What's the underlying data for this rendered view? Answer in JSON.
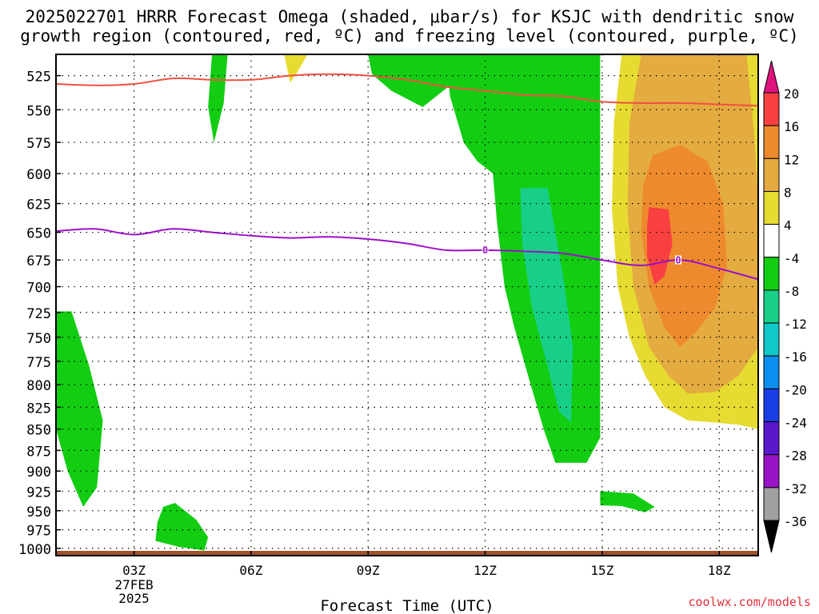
{
  "title_line1": "2025022701 HRRR Forecast Omega (shaded, μbar/s) for KSJC with dendritic snow",
  "title_line2": "growth region (contoured, red, ºC) and freezing level (contoured, purple, ºC)",
  "credit": "coolwx.com/models",
  "chart_data": {
    "type": "heatmap",
    "title": "2025022701 HRRR Forecast Omega (shaded, μbar/s) for KSJC with dendritic snow growth region (contoured, red, ºC) and freezing level (contoured, purple, ºC)",
    "xlabel": "Forecast Time (UTC)",
    "ylabel": "",
    "x_unit": "hours",
    "xlim": [
      1,
      19
    ],
    "x_ticks": [
      {
        "x": 3,
        "label": "03Z",
        "sub": [
          "27FEB",
          "2025"
        ]
      },
      {
        "x": 6,
        "label": "06Z"
      },
      {
        "x": 9,
        "label": "09Z"
      },
      {
        "x": 12,
        "label": "12Z"
      },
      {
        "x": 15,
        "label": "15Z"
      },
      {
        "x": 18,
        "label": "18Z"
      }
    ],
    "y_unit": "mb",
    "ylim": [
      1010,
      510
    ],
    "y_scale": "log",
    "y_ticks": [
      525,
      550,
      575,
      600,
      625,
      650,
      675,
      700,
      725,
      750,
      775,
      800,
      825,
      850,
      875,
      900,
      925,
      950,
      975,
      1000
    ],
    "grid": true,
    "colorbar": {
      "labels": [
        "20",
        "16",
        "12",
        "8",
        "4",
        "-4",
        "-8",
        "-12",
        "-16",
        "-20",
        "-24",
        "-28",
        "-32",
        "-36"
      ],
      "colors": [
        "#e0137f",
        "#f84040",
        "#ee8a2e",
        "#e4ab40",
        "#e6db30",
        "#ffffff",
        "#12cd12",
        "#18cf8a",
        "#10c8c8",
        "#0c8ef0",
        "#1a3ee6",
        "#5a18cc",
        "#9a12c6",
        "#a0a0a0",
        "#000000"
      ]
    },
    "omega_regions": [
      {
        "color": "#12cd12",
        "points": [
          [
            5.0,
            510
          ],
          [
            5.4,
            510
          ],
          [
            5.3,
            545
          ],
          [
            5.05,
            575
          ],
          [
            4.9,
            548
          ]
        ]
      },
      {
        "color": "#e6db30",
        "points": [
          [
            6.85,
            510
          ],
          [
            7.45,
            510
          ],
          [
            7.2,
            522
          ],
          [
            7.0,
            530
          ]
        ]
      },
      {
        "color": "#12cd12",
        "points": [
          [
            9.0,
            510
          ],
          [
            11.9,
            510
          ],
          [
            11.7,
            525
          ],
          [
            11.1,
            532
          ],
          [
            10.4,
            548
          ],
          [
            9.6,
            536
          ],
          [
            9.1,
            524
          ]
        ]
      },
      {
        "color": "#12cd12",
        "points": [
          [
            11.0,
            510
          ],
          [
            14.95,
            510
          ],
          [
            14.95,
            860
          ],
          [
            14.6,
            890
          ],
          [
            13.8,
            890
          ],
          [
            13.5,
            850
          ],
          [
            13.1,
            790
          ],
          [
            12.75,
            740
          ],
          [
            12.5,
            700
          ],
          [
            12.3,
            640
          ],
          [
            12.2,
            600
          ],
          [
            11.8,
            590
          ],
          [
            11.45,
            575
          ],
          [
            11.1,
            540
          ]
        ]
      },
      {
        "color": "#18cf8a",
        "points": [
          [
            12.9,
            612
          ],
          [
            13.6,
            612
          ],
          [
            14.0,
            690
          ],
          [
            14.25,
            760
          ],
          [
            14.2,
            842
          ],
          [
            13.9,
            830
          ],
          [
            13.6,
            780
          ],
          [
            13.2,
            720
          ],
          [
            12.95,
            660
          ]
        ]
      },
      {
        "color": "#12cd12",
        "points": [
          [
            1.0,
            724
          ],
          [
            1.4,
            724
          ],
          [
            1.85,
            780
          ],
          [
            2.2,
            840
          ],
          [
            2.05,
            920
          ],
          [
            1.7,
            945
          ],
          [
            1.3,
            900
          ],
          [
            1.0,
            850
          ]
        ]
      },
      {
        "color": "#12cd12",
        "points": [
          [
            3.75,
            945
          ],
          [
            4.05,
            940
          ],
          [
            4.6,
            962
          ],
          [
            4.9,
            985
          ],
          [
            4.8,
            1003
          ],
          [
            4.15,
            998
          ],
          [
            3.55,
            990
          ],
          [
            3.6,
            965
          ]
        ]
      },
      {
        "color": "#e6db30",
        "points": [
          [
            15.5,
            510
          ],
          [
            19.0,
            510
          ],
          [
            19.0,
            850
          ],
          [
            18.5,
            845
          ],
          [
            17.8,
            842
          ],
          [
            17.2,
            840
          ],
          [
            16.6,
            825
          ],
          [
            16.1,
            790
          ],
          [
            15.7,
            750
          ],
          [
            15.4,
            700
          ],
          [
            15.25,
            630
          ],
          [
            15.3,
            560
          ]
        ]
      },
      {
        "color": "#e4ab40",
        "points": [
          [
            16.0,
            510
          ],
          [
            18.7,
            510
          ],
          [
            18.9,
            570
          ],
          [
            19.0,
            620
          ],
          [
            19.0,
            760
          ],
          [
            18.5,
            790
          ],
          [
            17.9,
            808
          ],
          [
            17.2,
            810
          ],
          [
            16.7,
            790
          ],
          [
            16.2,
            760
          ],
          [
            15.8,
            700
          ],
          [
            15.65,
            630
          ],
          [
            15.7,
            560
          ]
        ]
      },
      {
        "color": "#ee8a2e",
        "points": [
          [
            16.3,
            585
          ],
          [
            17.0,
            577
          ],
          [
            17.7,
            590
          ],
          [
            18.1,
            625
          ],
          [
            18.2,
            680
          ],
          [
            17.9,
            720
          ],
          [
            17.4,
            745
          ],
          [
            17.0,
            760
          ],
          [
            16.6,
            740
          ],
          [
            16.2,
            700
          ],
          [
            16.0,
            650
          ],
          [
            16.05,
            610
          ]
        ]
      },
      {
        "color": "#f84040",
        "points": [
          [
            16.2,
            628
          ],
          [
            16.7,
            630
          ],
          [
            16.8,
            660
          ],
          [
            16.6,
            690
          ],
          [
            16.35,
            698
          ],
          [
            16.15,
            672
          ],
          [
            16.15,
            645
          ]
        ]
      },
      {
        "color": "#12cd12",
        "points": [
          [
            14.95,
            925
          ],
          [
            15.8,
            928
          ],
          [
            16.35,
            945
          ],
          [
            16.1,
            952
          ],
          [
            15.5,
            944
          ],
          [
            14.95,
            943
          ]
        ]
      }
    ],
    "dgz_contour": {
      "color": "#f05040",
      "points": [
        [
          1,
          531
        ],
        [
          2,
          532
        ],
        [
          3,
          531
        ],
        [
          4,
          527
        ],
        [
          5,
          528
        ],
        [
          6,
          528
        ],
        [
          7,
          525
        ],
        [
          8,
          524
        ],
        [
          9,
          525
        ],
        [
          10,
          528
        ],
        [
          11,
          533
        ],
        [
          12,
          536
        ],
        [
          13,
          539
        ],
        [
          14,
          540
        ],
        [
          15,
          544
        ],
        [
          16,
          545
        ],
        [
          17,
          545
        ],
        [
          18,
          546
        ],
        [
          19,
          547
        ]
      ]
    },
    "freezing_contour": {
      "color": "#9a10c6",
      "label": "0",
      "label_x": [
        12,
        16.95
      ],
      "points": [
        [
          1,
          649
        ],
        [
          2,
          647
        ],
        [
          3,
          652
        ],
        [
          4,
          647
        ],
        [
          5,
          650
        ],
        [
          6,
          653
        ],
        [
          7,
          655
        ],
        [
          8,
          654
        ],
        [
          9,
          656
        ],
        [
          10,
          660
        ],
        [
          11,
          666
        ],
        [
          12,
          666
        ],
        [
          13,
          667
        ],
        [
          14,
          669
        ],
        [
          15,
          675
        ],
        [
          16,
          680
        ],
        [
          17,
          675
        ],
        [
          18,
          683
        ],
        [
          19,
          693
        ]
      ]
    },
    "ground": {
      "color": "#a0522d",
      "points": [
        [
          1,
          1004
        ],
        [
          2,
          1005
        ],
        [
          2,
          1010
        ],
        [
          1,
          1010
        ]
      ],
      "base": [
        [
          1,
          1010
        ],
        [
          19,
          1010
        ]
      ]
    }
  }
}
